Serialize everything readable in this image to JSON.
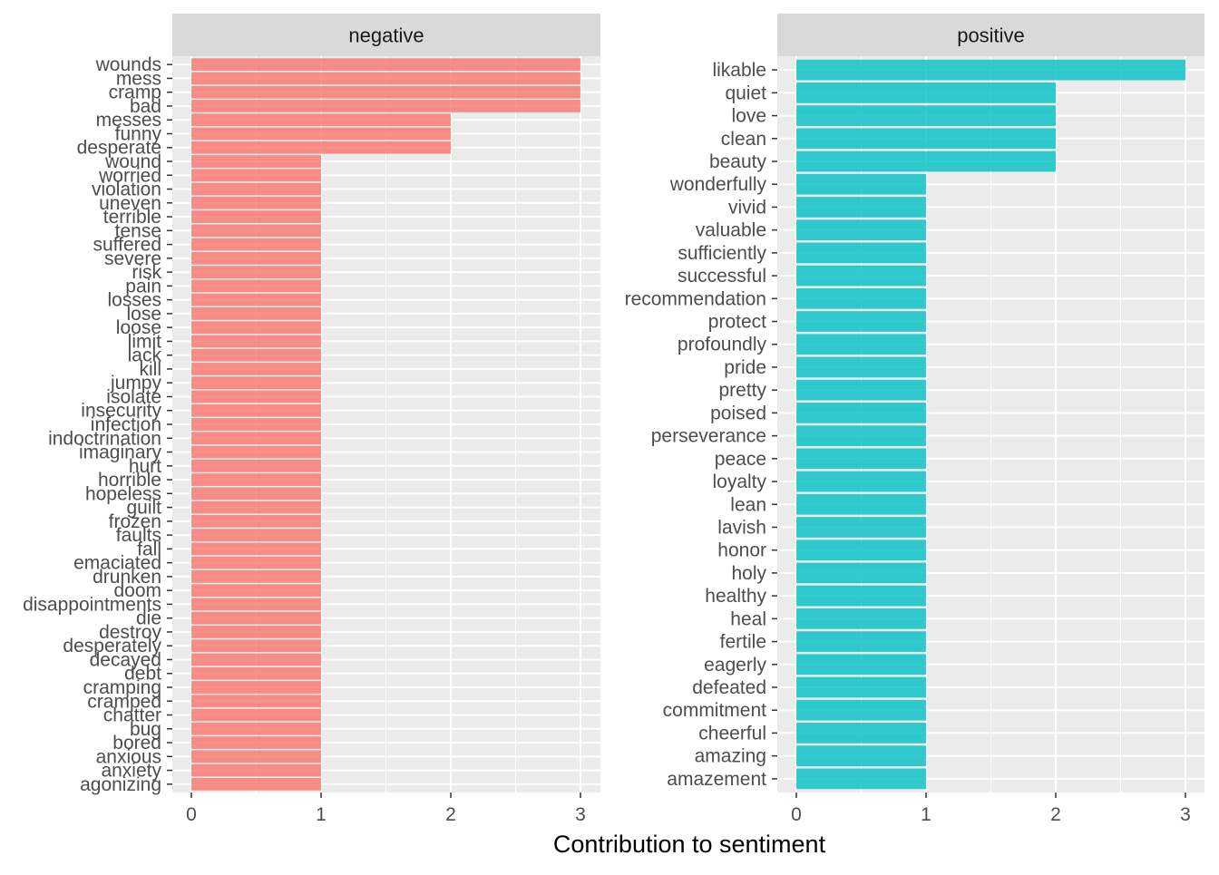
{
  "chart_data": {
    "type": "bar",
    "orientation": "horizontal",
    "xlabel": "Contribution to sentiment",
    "ylabel": "",
    "xlim": [
      0,
      3
    ],
    "x_ticks": [
      "0",
      "1",
      "2",
      "3"
    ],
    "grid": true,
    "legend": "none",
    "facets": [
      {
        "label": "negative",
        "color": "#F8766D",
        "categories": [
          "wounds",
          "mess",
          "cramp",
          "bad",
          "messes",
          "funny",
          "desperate",
          "wound",
          "worried",
          "violation",
          "uneven",
          "terrible",
          "tense",
          "suffered",
          "severe",
          "risk",
          "pain",
          "losses",
          "lose",
          "loose",
          "limit",
          "lack",
          "kill",
          "jumpy",
          "isolate",
          "insecurity",
          "infection",
          "indoctrination",
          "imaginary",
          "hurt",
          "horrible",
          "hopeless",
          "guilt",
          "frozen",
          "faults",
          "fall",
          "emaciated",
          "drunken",
          "doom",
          "disappointments",
          "die",
          "destroy",
          "desperately",
          "decayed",
          "debt",
          "cramping",
          "cramped",
          "chatter",
          "bug",
          "bored",
          "anxious",
          "anxiety",
          "agonizing"
        ],
        "values": [
          3,
          3,
          3,
          3,
          2,
          2,
          2,
          1,
          1,
          1,
          1,
          1,
          1,
          1,
          1,
          1,
          1,
          1,
          1,
          1,
          1,
          1,
          1,
          1,
          1,
          1,
          1,
          1,
          1,
          1,
          1,
          1,
          1,
          1,
          1,
          1,
          1,
          1,
          1,
          1,
          1,
          1,
          1,
          1,
          1,
          1,
          1,
          1,
          1,
          1,
          1,
          1,
          1
        ]
      },
      {
        "label": "positive",
        "color": "#00BFC4",
        "categories": [
          "likable",
          "quiet",
          "love",
          "clean",
          "beauty",
          "wonderfully",
          "vivid",
          "valuable",
          "sufficiently",
          "successful",
          "recommendation",
          "protect",
          "profoundly",
          "pride",
          "pretty",
          "poised",
          "perseverance",
          "peace",
          "loyalty",
          "lean",
          "lavish",
          "honor",
          "holy",
          "healthy",
          "heal",
          "fertile",
          "eagerly",
          "defeated",
          "commitment",
          "cheerful",
          "amazing",
          "amazement"
        ],
        "values": [
          3,
          2,
          2,
          2,
          2,
          1,
          1,
          1,
          1,
          1,
          1,
          1,
          1,
          1,
          1,
          1,
          1,
          1,
          1,
          1,
          1,
          1,
          1,
          1,
          1,
          1,
          1,
          1,
          1,
          1,
          1,
          1
        ]
      }
    ]
  }
}
